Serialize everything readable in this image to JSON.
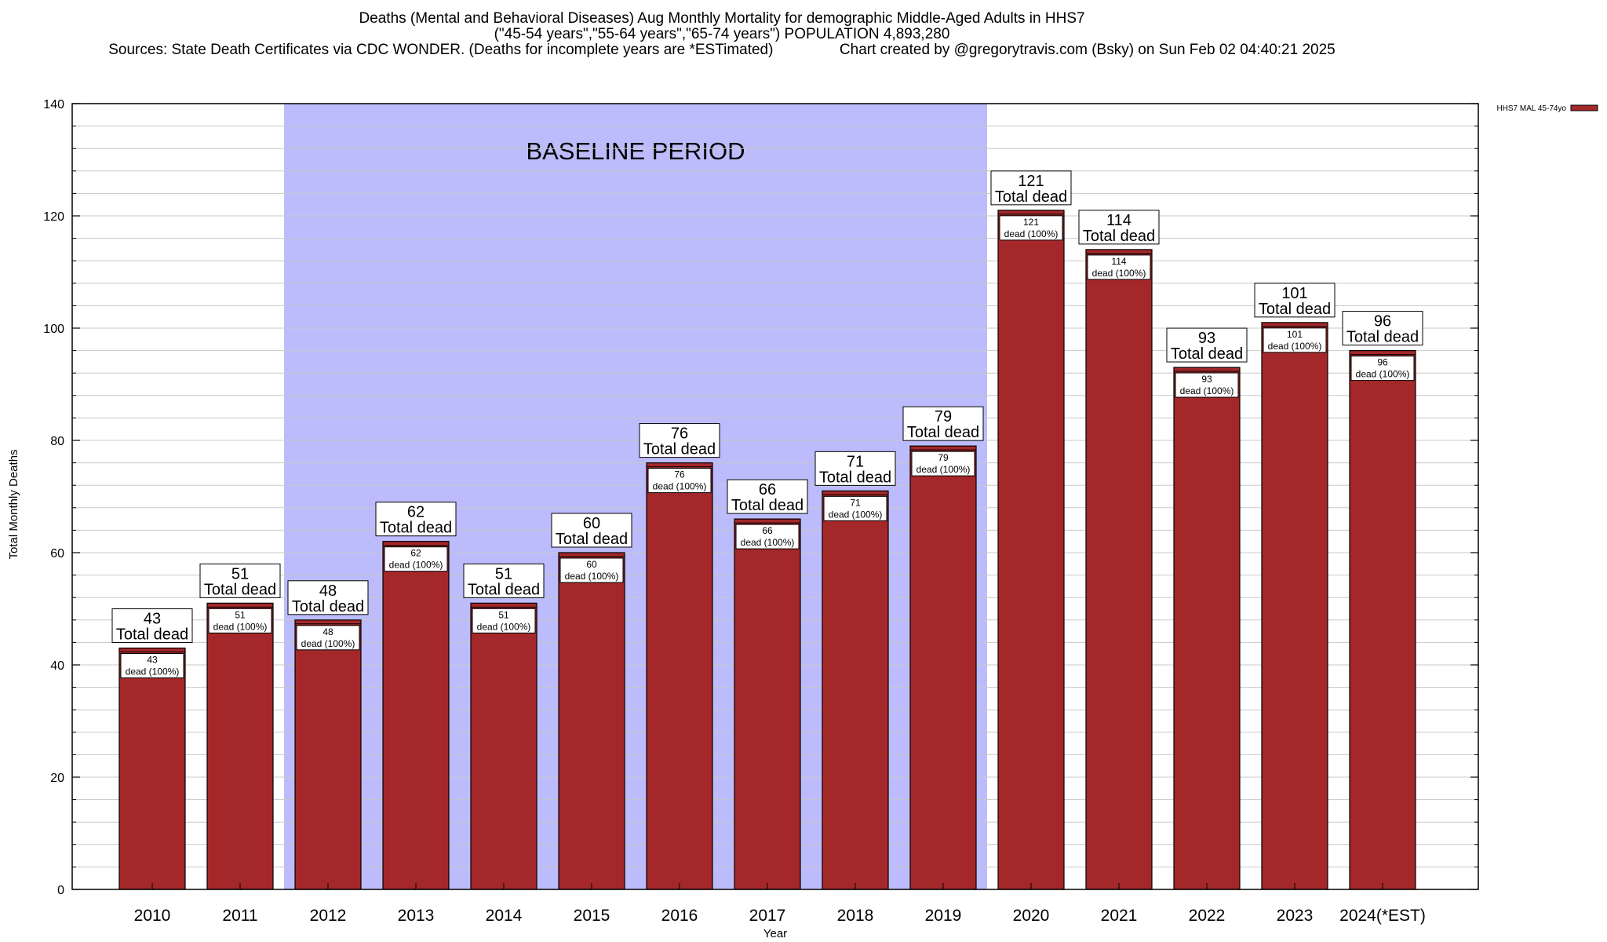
{
  "title_lines": [
    "Deaths (Mental and Behavioral Diseases) Aug Monthly Mortality for demographic Middle-Aged Adults in HHS7",
    "(\"45-54 years\",\"55-64 years\",\"65-74 years\") POPULATION 4,893,280",
    "Sources: State Death Certificates via CDC WONDER. (Deaths for incomplete years are *ESTimated)                Chart created by @gregorytravis.com (Bsky) on Sun Feb 02 04:40:21 2025"
  ],
  "chart_data": {
    "type": "bar",
    "xlabel": "Year",
    "ylabel": "Total Monthly Deaths",
    "ylim": [
      0,
      140
    ],
    "yticks": [
      0,
      20,
      40,
      60,
      80,
      100,
      120,
      140
    ],
    "categories": [
      "2010",
      "2011",
      "2012",
      "2013",
      "2014",
      "2015",
      "2016",
      "2017",
      "2018",
      "2019",
      "2020",
      "2021",
      "2022",
      "2023",
      "2024(*EST)"
    ],
    "series": [
      {
        "name": "HHS7 MAL 45-74yo",
        "color": "#a4282a",
        "values": [
          43,
          51,
          48,
          62,
          51,
          60,
          76,
          66,
          71,
          79,
          121,
          114,
          93,
          101,
          96
        ]
      }
    ],
    "total_label_suffix": "Total dead",
    "inner_label_suffix": "dead (100%)",
    "baseline": {
      "label": "BASELINE PERIOD",
      "start": "2012",
      "end": "2019",
      "color": "#bcbcfc"
    },
    "grid": true,
    "legend_position": "top-right"
  }
}
